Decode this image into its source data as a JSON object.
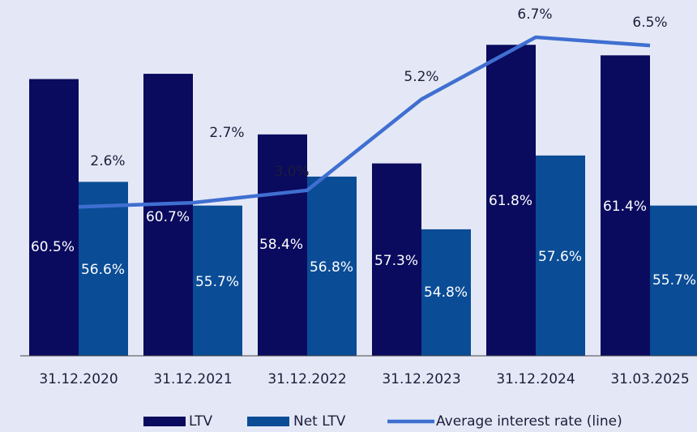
{
  "chart_data": {
    "type": "bar",
    "categories": [
      "31.12.2020",
      "31.12.2021",
      "31.12.2022",
      "31.12.2023",
      "31.12.2024",
      "31.03.2025"
    ],
    "series": [
      {
        "name": "LTV",
        "color": "#0a0a5e",
        "values": [
          60.5,
          60.7,
          58.4,
          57.3,
          61.8,
          61.4
        ],
        "value_labels": [
          "60.5%",
          "60.7%",
          "58.4%",
          "57.3%",
          "61.8%",
          "61.4%"
        ]
      },
      {
        "name": "Net LTV",
        "color": "#0a4c96",
        "values": [
          56.6,
          55.7,
          56.8,
          54.8,
          57.6,
          55.7
        ],
        "value_labels": [
          "56.6%",
          "55.7%",
          "56.8%",
          "54.8%",
          "57.6%",
          "55.7%"
        ]
      },
      {
        "name": "Average interest rate (line)",
        "type": "line",
        "axis": "y2",
        "color": "#3f6fd1",
        "values": [
          2.6,
          2.7,
          3.0,
          5.2,
          6.7,
          6.5
        ],
        "value_labels": [
          "2.6%",
          "2.7%",
          "3.0%",
          "5.2%",
          "6.7%",
          "6.5%"
        ]
      }
    ],
    "ylim": [
      50,
      63.5
    ],
    "y2lim": [
      -1,
      7.6
    ],
    "legend": "bottom"
  }
}
